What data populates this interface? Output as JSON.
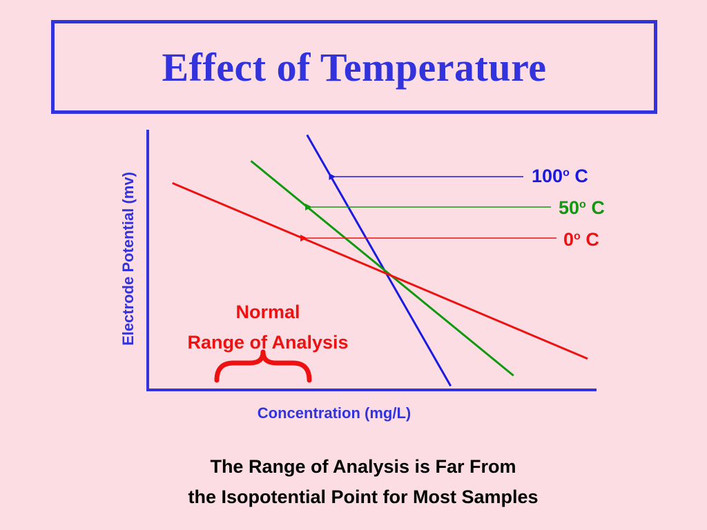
{
  "slide": {
    "title": "Effect of Temperature",
    "note_line1": "Normal",
    "note_line2": "Range of Analysis",
    "caption_line1": "The Range of Analysis is Far From",
    "caption_line2": "the Isopotential Point for Most Samples"
  },
  "colors": {
    "background": "#fbdde3",
    "title": "#3333dd",
    "axis": "#3333dd",
    "series_100": "#1a1ae0",
    "series_50": "#109910",
    "series_0": "#ee1111",
    "brace": "#ee1111"
  },
  "chart_data": {
    "type": "line",
    "xlabel": "Concentration (mg/L)",
    "ylabel": "Electrode Potential (mv)",
    "xlim": [
      0,
      100
    ],
    "ylim": [
      0,
      100
    ],
    "grid": false,
    "legend_placement": "right, with arrows pointing to lines",
    "isopotential_point": {
      "x": 53,
      "y": 45.5
    },
    "series": [
      {
        "name": "100",
        "unit": "o C",
        "x": [
          35.5,
          67.5
        ],
        "y": [
          98,
          1.5
        ]
      },
      {
        "name": "50",
        "unit": "o C",
        "x": [
          23,
          81.5
        ],
        "y": [
          88,
          5.5
        ]
      },
      {
        "name": "0",
        "unit": "o C",
        "x": [
          5.5,
          98
        ],
        "y": [
          79.5,
          12
        ]
      }
    ]
  }
}
